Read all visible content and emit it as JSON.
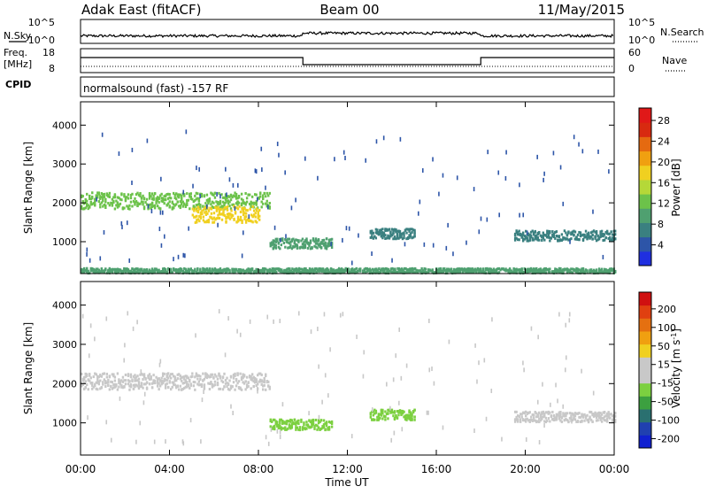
{
  "header": {
    "radar_title": "Adak East (fitACF)",
    "beam": "Beam 00",
    "date": "11/May/2015"
  },
  "status": {
    "nsky_label": "N.Sky",
    "nsearch_label": "N.Search",
    "sky_ticks_left": [
      "10^5",
      "10^0"
    ],
    "sky_ticks_right": [
      "10^5",
      "10^0"
    ],
    "freq_label": "Freq.",
    "freq_unit": "[MHz]",
    "freq_ticks": [
      "18",
      "8"
    ],
    "nave_label": "Nave",
    "nave_ticks": [
      "60",
      "0"
    ],
    "cpid_label": "CPID",
    "cpid_value": "normalsound (fast) -157 RF"
  },
  "chart_data": [
    {
      "type": "heatmap",
      "title": "",
      "xlabel": "Time UT",
      "ylabel": "Slant Range [km]",
      "xlim": [
        0,
        24
      ],
      "ylim": [
        180,
        4600
      ],
      "x_ticks": [
        "00:00",
        "04:00",
        "08:00",
        "12:00",
        "16:00",
        "20:00",
        "00:00"
      ],
      "y_ticks": [
        "1000",
        "2000",
        "3000",
        "4000"
      ],
      "colorbar": {
        "label": "Power [dB]",
        "ticks": [
          "4",
          "8",
          "12",
          "16",
          "20",
          "24",
          "28"
        ],
        "colors": [
          "#1f2fe0",
          "#2d55a8",
          "#3a8080",
          "#4fa070",
          "#6cc24a",
          "#b5d838",
          "#f0d020",
          "#f0a010",
          "#e56a10",
          "#d82a10",
          "#e01818"
        ]
      },
      "echo_regions": [
        {
          "t_start": 0.0,
          "t_end": 8.5,
          "range_km": 2050,
          "value_db": 12
        },
        {
          "t_start": 5.0,
          "t_end": 8.0,
          "range_km": 1700,
          "value_db": 20
        },
        {
          "t_start": 8.5,
          "t_end": 11.3,
          "range_km": 950,
          "value_db": 10
        },
        {
          "t_start": 13.0,
          "t_end": 15.0,
          "range_km": 1200,
          "value_db": 6
        },
        {
          "t_start": 19.5,
          "t_end": 24.0,
          "range_km": 1150,
          "value_db": 6
        },
        {
          "t_start": 0.0,
          "t_end": 24.0,
          "range_km": 250,
          "value_db": 8
        }
      ]
    },
    {
      "type": "heatmap",
      "title": "",
      "xlabel": "Time UT",
      "ylabel": "Slant Range [km]",
      "xlim": [
        0,
        24
      ],
      "ylim": [
        180,
        4600
      ],
      "x_ticks": [
        "00:00",
        "04:00",
        "08:00",
        "12:00",
        "16:00",
        "20:00",
        "00:00"
      ],
      "y_ticks": [
        "1000",
        "2000",
        "3000",
        "4000"
      ],
      "colorbar": {
        "label": "Velocity [m s^-1]",
        "ticks": [
          "200",
          "100",
          "50",
          "15",
          "-15",
          "-50",
          "-100",
          "-200"
        ],
        "colors": [
          "#1020d0",
          "#2040b0",
          "#2a7070",
          "#3ca040",
          "#7cd040",
          "#c8c8c8",
          "#c8c8c8",
          "#f0d020",
          "#f0a010",
          "#e57010",
          "#e04010",
          "#d01010"
        ]
      },
      "echo_regions": [
        {
          "t_start": 0.0,
          "t_end": 8.5,
          "range_km": 2050,
          "value_ms": 0
        },
        {
          "t_start": 8.5,
          "t_end": 11.3,
          "range_km": 950,
          "value_ms": 40
        },
        {
          "t_start": 13.0,
          "t_end": 15.0,
          "range_km": 1200,
          "value_ms": 40
        },
        {
          "t_start": 19.5,
          "t_end": 24.0,
          "range_km": 1150,
          "value_ms": 0
        }
      ]
    }
  ]
}
